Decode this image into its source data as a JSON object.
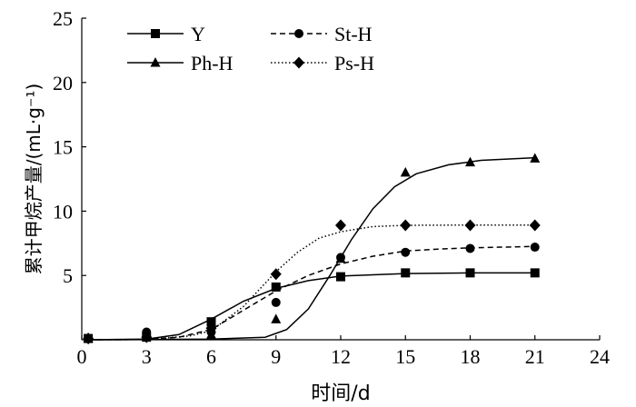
{
  "chart_data": {
    "type": "scatter",
    "xlabel": "时间/d",
    "ylabel": "累计甲烷产量/(mL·g⁻¹)",
    "xlim": [
      0,
      24
    ],
    "ylim": [
      0,
      25
    ],
    "x_ticks": [
      0,
      3,
      6,
      9,
      12,
      15,
      18,
      21,
      24
    ],
    "y_ticks": [
      5,
      10,
      15,
      20,
      25
    ],
    "grid": false,
    "legend_placement": "top-left",
    "series": [
      {
        "name": "Y",
        "marker": "square",
        "line_style": "solid",
        "points": [
          [
            0.3,
            0.1
          ],
          [
            3,
            0.2
          ],
          [
            6,
            1.4
          ],
          [
            9,
            4.1
          ],
          [
            12,
            4.9
          ],
          [
            15,
            5.2
          ],
          [
            18,
            5.2
          ],
          [
            21,
            5.2
          ]
        ],
        "fit": [
          [
            0.3,
            0
          ],
          [
            3,
            0.05
          ],
          [
            4.5,
            0.4
          ],
          [
            6,
            1.6
          ],
          [
            7.5,
            3.0
          ],
          [
            9,
            4.0
          ],
          [
            10.5,
            4.6
          ],
          [
            12,
            4.95
          ],
          [
            15,
            5.15
          ],
          [
            18,
            5.2
          ],
          [
            21,
            5.2
          ]
        ]
      },
      {
        "name": "St-H",
        "marker": "circle",
        "line_style": "dashed",
        "points": [
          [
            0.3,
            0.1
          ],
          [
            3,
            0.6
          ],
          [
            6,
            0.6
          ],
          [
            9,
            2.9
          ],
          [
            12,
            6.4
          ],
          [
            15,
            6.8
          ],
          [
            18,
            7.1
          ],
          [
            21,
            7.2
          ]
        ],
        "fit": [
          [
            0.3,
            0
          ],
          [
            3,
            0.02
          ],
          [
            4.5,
            0.2
          ],
          [
            6,
            0.8
          ],
          [
            7.5,
            2.3
          ],
          [
            9,
            3.8
          ],
          [
            10.5,
            5.0
          ],
          [
            12,
            5.9
          ],
          [
            13.5,
            6.5
          ],
          [
            15,
            6.9
          ],
          [
            16.5,
            7.05
          ],
          [
            18,
            7.15
          ],
          [
            21,
            7.25
          ]
        ]
      },
      {
        "name": "Ph-H",
        "marker": "triangle",
        "line_style": "solid",
        "points": [
          [
            0.3,
            0.1
          ],
          [
            3,
            0.3
          ],
          [
            6,
            0.4
          ],
          [
            9,
            1.6
          ],
          [
            12,
            6.3
          ],
          [
            15,
            13.0
          ],
          [
            18,
            13.8
          ],
          [
            21,
            14.1
          ]
        ],
        "fit": [
          [
            0.3,
            0
          ],
          [
            6,
            0.05
          ],
          [
            8.5,
            0.2
          ],
          [
            9.5,
            0.8
          ],
          [
            10.5,
            2.4
          ],
          [
            11.5,
            5.0
          ],
          [
            12.5,
            7.8
          ],
          [
            13.5,
            10.2
          ],
          [
            14.5,
            11.9
          ],
          [
            15.5,
            12.9
          ],
          [
            17,
            13.6
          ],
          [
            18.5,
            13.95
          ],
          [
            21,
            14.15
          ]
        ]
      },
      {
        "name": "Ps-H",
        "marker": "diamond",
        "line_style": "dotted",
        "points": [
          [
            0.3,
            0.1
          ],
          [
            3,
            0.2
          ],
          [
            6,
            0.9
          ],
          [
            9,
            5.1
          ],
          [
            12,
            8.9
          ],
          [
            15,
            8.9
          ],
          [
            18,
            8.9
          ],
          [
            21,
            8.9
          ]
        ],
        "fit": [
          [
            0.3,
            0
          ],
          [
            3,
            0.02
          ],
          [
            5,
            0.3
          ],
          [
            6,
            0.7
          ],
          [
            7.5,
            2.6
          ],
          [
            9,
            5.3
          ],
          [
            10,
            6.8
          ],
          [
            11,
            7.9
          ],
          [
            12,
            8.4
          ],
          [
            13.5,
            8.8
          ],
          [
            15,
            8.9
          ],
          [
            18,
            8.92
          ],
          [
            21,
            8.92
          ]
        ]
      }
    ]
  }
}
